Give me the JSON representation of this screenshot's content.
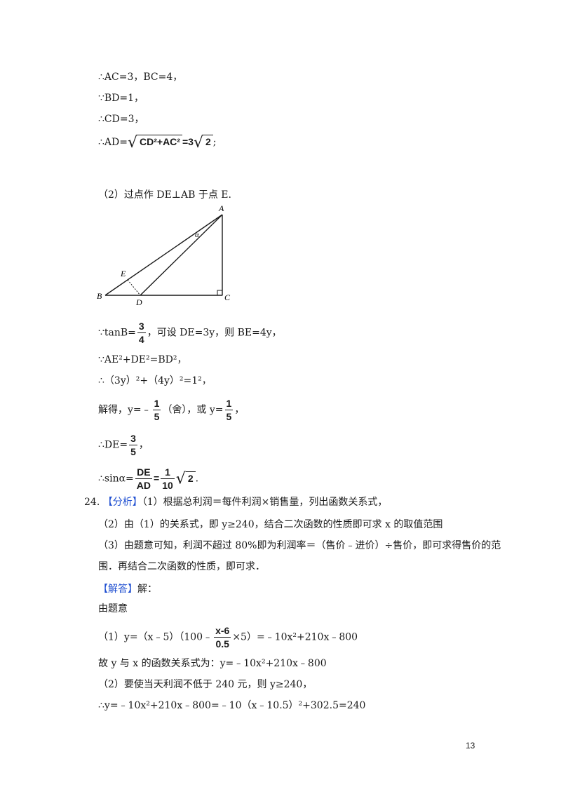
{
  "part1": {
    "l1": "∴AC=3，BC=4，",
    "l2": "∵BD=1，",
    "l3": "∴CD=3，",
    "l4_prefix": "∴AD=",
    "l4_radicand": "CD²+AC²",
    "l4_eq": "=3",
    "l4_root": "2",
    "l4_end": ";"
  },
  "part2": {
    "intro": "（2）过点作 DE⊥AB 于点 E.",
    "figure": {
      "A": "A",
      "B": "B",
      "C": "C",
      "D": "D",
      "E": "E",
      "alpha": "α"
    },
    "tan_prefix": "∵tanB=",
    "tan_num": "3",
    "tan_den": "4",
    "tan_suffix": "，可设 DE=3y，则 BE=4y，",
    "pyth": "∵AE²+DE²=BD²，",
    "eq": "∴（3y）²+（4y）²=1²，",
    "solve_prefix": "解得，y=﹣",
    "solve_num1": "1",
    "solve_den1": "5",
    "solve_mid": "（舍），或 y=",
    "solve_num2": "1",
    "solve_den2": "5",
    "solve_end": "，",
    "de_prefix": "∴DE=",
    "de_num": "3",
    "de_den": "5",
    "de_end": "，",
    "sin_prefix": "∴sinα=",
    "sin_num": "DE",
    "sin_den": "AD",
    "sin_eq": "=",
    "sin_num2": "1",
    "sin_den2": "10",
    "sin_root": "2",
    "sin_end": "."
  },
  "q24": {
    "number": "24.",
    "analysis_tag": "【分析】",
    "a1": "（1）根据总利润＝每件利润×销售量，列出函数关系式，",
    "a2": "（2）由（1）的关系式，即 y≥240，结合二次函数的性质即可求 x 的取值范围",
    "a3": "（3）由题意可知，利润不超过 80%即为利润率＝（售价﹣进价）÷售价，即可求得售价的范",
    "a4": "围．再结合二次函数的性质，即可求．",
    "answer_tag": "【解答】",
    "answer_after": "解：",
    "b0": "由题意",
    "b1_prefix": "（1）y=（x﹣5）（100﹣",
    "b1_num": "x-6",
    "b1_den": "0.5",
    "b1_suffix": "×5）=﹣10x²+210x﹣800",
    "b2": "故 y 与 x 的函数关系式为：y=﹣10x²+210x﹣800",
    "b3": "（2）要使当天利润不低于 240 元，则 y≥240，",
    "b4": "∴y=﹣10x²+210x﹣800=﹣10（x﹣10.5）²+302.5=240"
  },
  "page_number": "13"
}
